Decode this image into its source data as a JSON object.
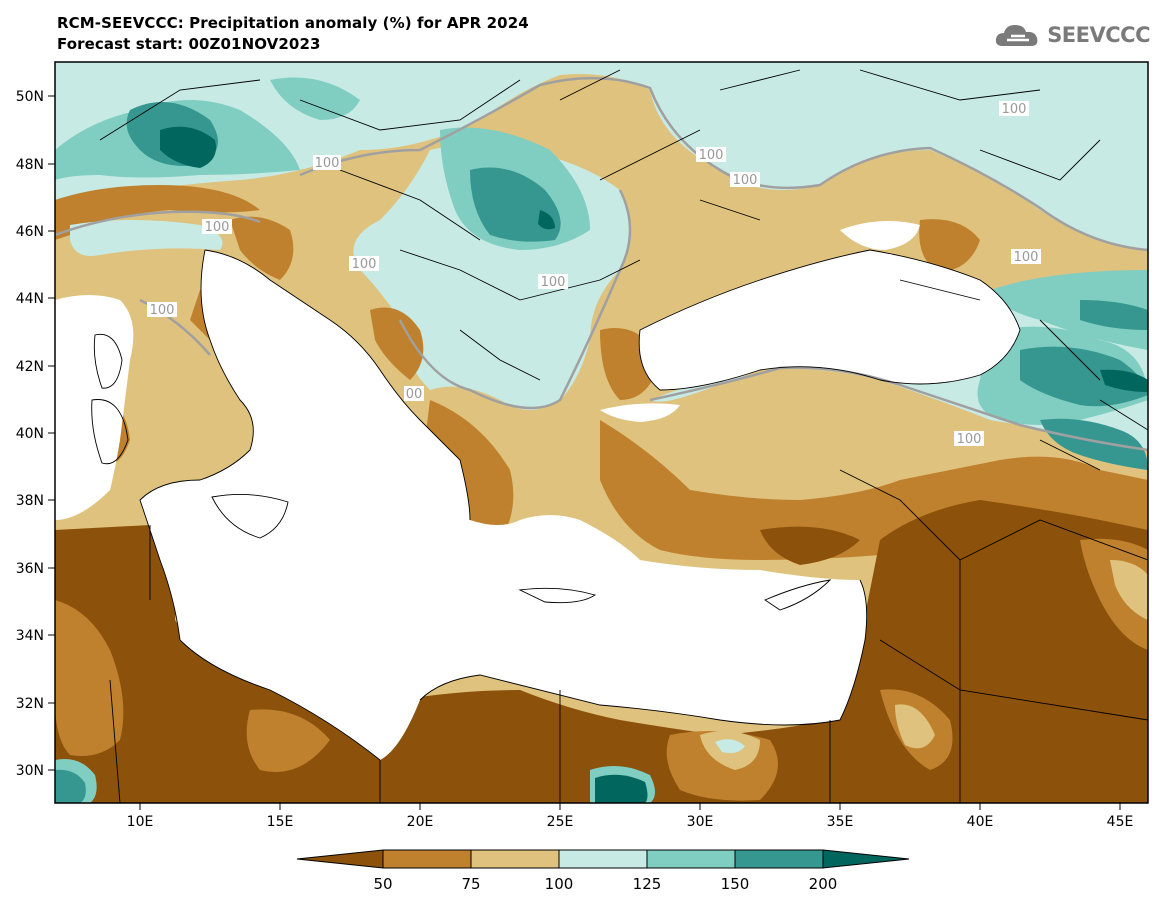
{
  "header": {
    "title": "RCM-SEEVCCC: Precipitation anomaly (%) for APR 2024",
    "subtitle": "Forecast start: 00Z01NOV2023",
    "logo_text": "SEEVCCC"
  },
  "map": {
    "lon_ticks": [
      "10E",
      "15E",
      "20E",
      "25E",
      "30E",
      "35E",
      "40E",
      "45E"
    ],
    "lat_ticks": [
      "50N",
      "48N",
      "46N",
      "44N",
      "42N",
      "40N",
      "38N",
      "36N",
      "34N",
      "32N",
      "30N"
    ],
    "contour_label": "100",
    "contour_label_partial": "00",
    "sea_color": "#ffffff",
    "land_outline_color": "#000000",
    "contour_color": "#a0a0a0"
  },
  "colorbar": {
    "labels": [
      "50",
      "75",
      "100",
      "125",
      "150",
      "200"
    ],
    "colors": [
      "#8c510a",
      "#bf812d",
      "#dfc27d",
      "#c7eae5",
      "#80cdc1",
      "#35978f",
      "#01665e"
    ]
  }
}
